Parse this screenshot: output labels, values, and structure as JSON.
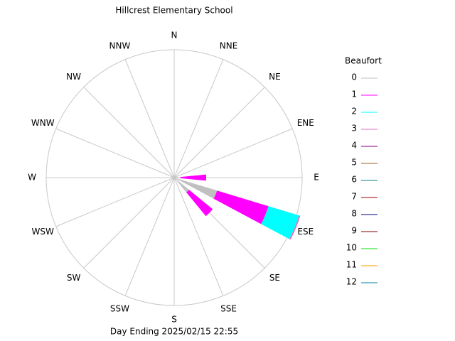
{
  "chart_data": {
    "type": "windrose",
    "title": "Hillcrest Elementary School",
    "footer": "Day Ending 2025/02/15 22:55",
    "legend_title": "Beaufort",
    "directions": [
      "N",
      "NNE",
      "NE",
      "ENE",
      "E",
      "ESE",
      "SE",
      "SSE",
      "S",
      "SSW",
      "SW",
      "WSW",
      "W",
      "WNW",
      "NW",
      "NNW"
    ],
    "rlim": [
      0,
      100
    ],
    "series": [
      {
        "name": "0",
        "color": "#c0c0c0",
        "values": [
          0,
          0,
          0,
          0,
          5,
          35,
          15,
          0,
          0,
          0,
          0,
          0,
          0,
          0,
          0,
          0
        ]
      },
      {
        "name": "1",
        "color": "#ff00ff",
        "values": [
          0,
          0,
          0,
          0,
          20,
          42,
          24,
          0,
          0,
          0,
          0,
          0,
          0,
          0,
          0,
          0
        ]
      },
      {
        "name": "2",
        "color": "#00ffff",
        "values": [
          0,
          0,
          0,
          0,
          0,
          25,
          0,
          0,
          0,
          0,
          0,
          0,
          0,
          0,
          0,
          0
        ]
      },
      {
        "name": "3",
        "color": "#e070c0",
        "values": [
          0,
          0,
          0,
          0,
          0,
          1,
          0,
          0,
          0,
          0,
          0,
          0,
          0,
          0,
          0,
          0
        ]
      },
      {
        "name": "4",
        "color": "#800080",
        "values": [
          0,
          0,
          0,
          0,
          0,
          0,
          0,
          0,
          0,
          0,
          0,
          0,
          0,
          0,
          0,
          0
        ]
      },
      {
        "name": "5",
        "color": "#a06020",
        "values": [
          0,
          0,
          0,
          0,
          0,
          0,
          0,
          0,
          0,
          0,
          0,
          0,
          0,
          0,
          0,
          0
        ]
      },
      {
        "name": "6",
        "color": "#008080",
        "values": [
          0,
          0,
          0,
          0,
          0,
          0,
          0,
          0,
          0,
          0,
          0,
          0,
          0,
          0,
          0,
          0
        ]
      },
      {
        "name": "7",
        "color": "#a00000",
        "values": [
          0,
          0,
          0,
          0,
          0,
          0,
          0,
          0,
          0,
          0,
          0,
          0,
          0,
          0,
          0,
          0
        ]
      },
      {
        "name": "8",
        "color": "#000080",
        "values": [
          0,
          0,
          0,
          0,
          0,
          0,
          0,
          0,
          0,
          0,
          0,
          0,
          0,
          0,
          0,
          0
        ]
      },
      {
        "name": "9",
        "color": "#800000",
        "values": [
          0,
          0,
          0,
          0,
          0,
          0,
          0,
          0,
          0,
          0,
          0,
          0,
          0,
          0,
          0,
          0
        ]
      },
      {
        "name": "10",
        "color": "#00e000",
        "values": [
          0,
          0,
          0,
          0,
          0,
          0,
          0,
          0,
          0,
          0,
          0,
          0,
          0,
          0,
          0,
          0
        ]
      },
      {
        "name": "11",
        "color": "#ff9900",
        "values": [
          0,
          0,
          0,
          0,
          0,
          0,
          0,
          0,
          0,
          0,
          0,
          0,
          0,
          0,
          0,
          0
        ]
      },
      {
        "name": "12",
        "color": "#0080a0",
        "values": [
          0,
          0,
          0,
          0,
          0,
          0,
          0,
          0,
          0,
          0,
          0,
          0,
          0,
          0,
          0,
          0
        ]
      }
    ]
  }
}
